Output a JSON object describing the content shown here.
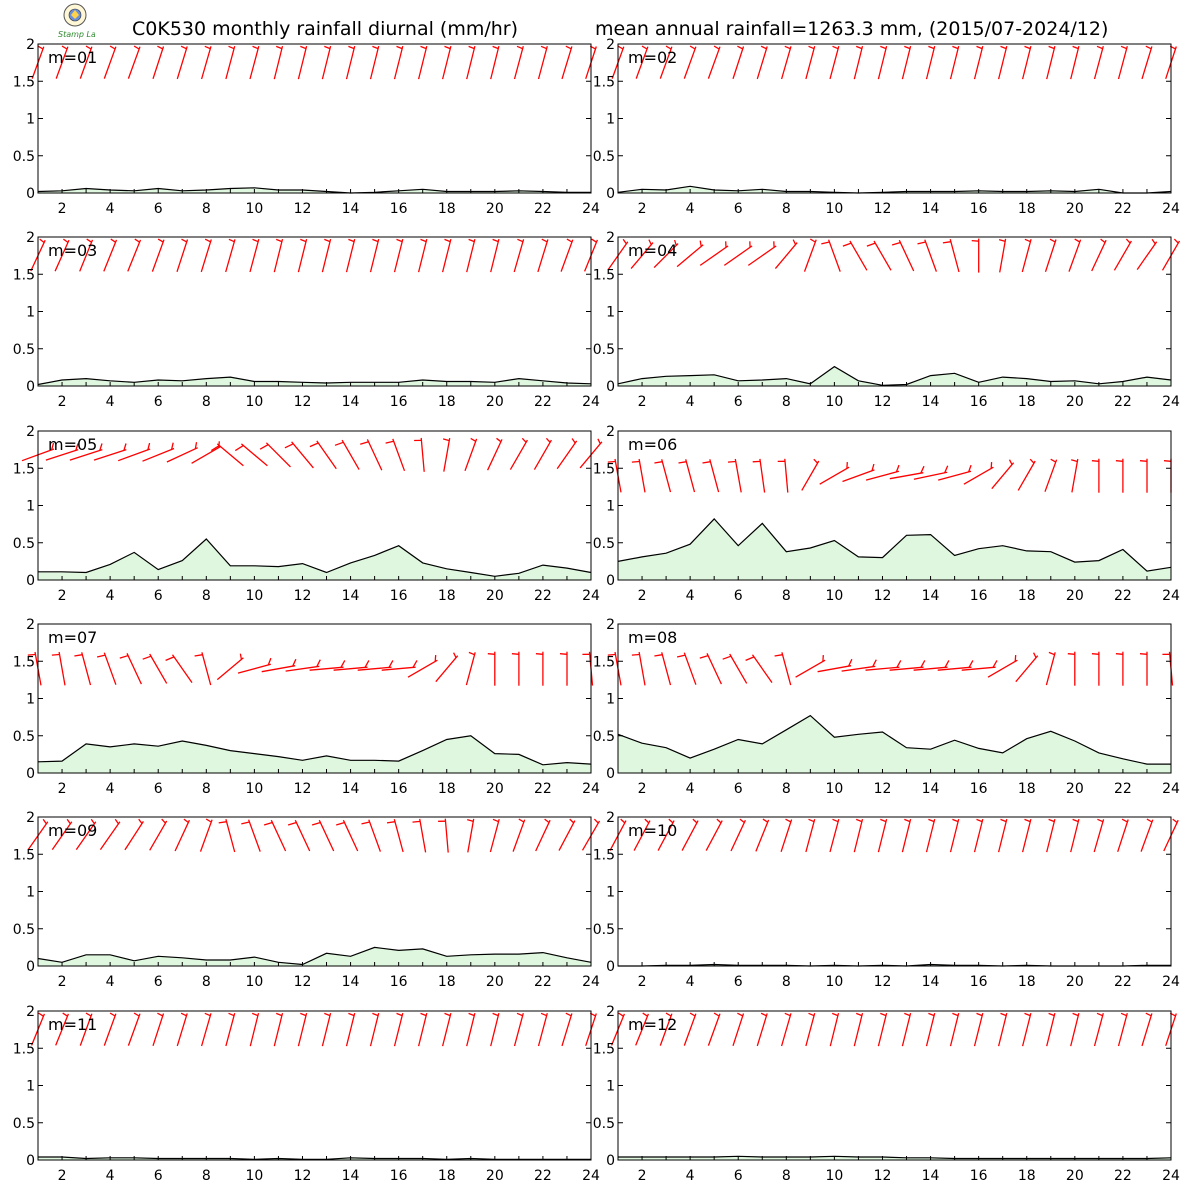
{
  "title_left": "C0K530 monthly rainfall diurnal (mm/hr)",
  "title_right": "mean annual rainfall=1263.3 mm, (2015/07-2024/12)",
  "colors": {
    "fill": "#dff7df",
    "line": "#000000",
    "barb": "#ff0000",
    "frame": "#000000"
  },
  "logo": {
    "icon": "seal-logo-icon",
    "text": "Stamp Lab"
  },
  "chart_data": {
    "type": "area",
    "xlim": [
      1,
      24
    ],
    "ylim": [
      0,
      2
    ],
    "xticks": [
      2,
      4,
      6,
      8,
      10,
      12,
      14,
      16,
      18,
      20,
      22,
      24
    ],
    "yticks": [
      0,
      0.5,
      1,
      1.5,
      2
    ],
    "ytick_labels": [
      "0",
      "0.5",
      "1",
      "1.5",
      "2"
    ],
    "hours": [
      1,
      2,
      3,
      4,
      5,
      6,
      7,
      8,
      9,
      10,
      11,
      12,
      13,
      14,
      15,
      16,
      17,
      18,
      19,
      20,
      21,
      22,
      23,
      24
    ],
    "panels": [
      {
        "label": "m=01",
        "values": [
          0.02,
          0.03,
          0.06,
          0.04,
          0.03,
          0.06,
          0.03,
          0.04,
          0.06,
          0.07,
          0.04,
          0.04,
          0.02,
          0.0,
          0.01,
          0.03,
          0.05,
          0.02,
          0.02,
          0.02,
          0.03,
          0.02,
          0.01,
          0.01
        ],
        "barbs": {
          "y": 1.75,
          "tilt": [
            20,
            20,
            20,
            20,
            20,
            18,
            17,
            16,
            15,
            15,
            14,
            14,
            14,
            14,
            14,
            14,
            14,
            14,
            14,
            14,
            15,
            15,
            17,
            18
          ]
        }
      },
      {
        "label": "m=02",
        "values": [
          0.01,
          0.05,
          0.04,
          0.09,
          0.04,
          0.03,
          0.05,
          0.02,
          0.02,
          0.01,
          0.0,
          0.01,
          0.02,
          0.02,
          0.02,
          0.03,
          0.02,
          0.02,
          0.03,
          0.02,
          0.05,
          0.0,
          0.0,
          0.02
        ],
        "barbs": {
          "y": 1.75,
          "tilt": [
            20,
            20,
            20,
            20,
            20,
            18,
            17,
            16,
            15,
            15,
            14,
            14,
            14,
            14,
            14,
            14,
            14,
            14,
            14,
            14,
            15,
            15,
            17,
            18
          ]
        }
      },
      {
        "label": "m=03",
        "values": [
          0.02,
          0.08,
          0.1,
          0.07,
          0.05,
          0.08,
          0.07,
          0.1,
          0.12,
          0.06,
          0.06,
          0.05,
          0.04,
          0.05,
          0.05,
          0.05,
          0.08,
          0.06,
          0.06,
          0.05,
          0.1,
          0.07,
          0.04,
          0.03
        ],
        "barbs": {
          "y": 1.75,
          "tilt": [
            25,
            24,
            22,
            22,
            22,
            20,
            18,
            17,
            16,
            15,
            14,
            14,
            14,
            14,
            14,
            14,
            14,
            14,
            14,
            14,
            16,
            17,
            20,
            22
          ]
        }
      },
      {
        "label": "m=04",
        "values": [
          0.03,
          0.1,
          0.13,
          0.14,
          0.15,
          0.07,
          0.08,
          0.1,
          0.03,
          0.26,
          0.07,
          0.01,
          0.02,
          0.14,
          0.17,
          0.05,
          0.12,
          0.1,
          0.06,
          0.07,
          0.03,
          0.06,
          0.12,
          0.08
        ],
        "barbs": {
          "y": 1.75,
          "tilt": [
            35,
            40,
            45,
            50,
            55,
            55,
            55,
            40,
            20,
            -20,
            -30,
            -30,
            -25,
            -20,
            -15,
            0,
            10,
            15,
            18,
            20,
            25,
            30,
            35,
            30
          ]
        }
      },
      {
        "label": "m=05",
        "values": [
          0.11,
          0.11,
          0.1,
          0.21,
          0.37,
          0.14,
          0.26,
          0.55,
          0.19,
          0.19,
          0.18,
          0.22,
          0.1,
          0.23,
          0.33,
          0.46,
          0.23,
          0.15,
          0.1,
          0.05,
          0.09,
          0.2,
          0.16,
          0.1
        ],
        "barbs": {
          "y": 1.68,
          "tilt": [
            70,
            72,
            72,
            72,
            70,
            68,
            65,
            60,
            -50,
            -50,
            -45,
            -40,
            -35,
            -30,
            -25,
            -20,
            -5,
            10,
            20,
            25,
            30,
            30,
            35,
            40
          ]
        }
      },
      {
        "label": "m=06",
        "values": [
          0.25,
          0.31,
          0.36,
          0.48,
          0.82,
          0.46,
          0.76,
          0.38,
          0.43,
          0.53,
          0.31,
          0.3,
          0.6,
          0.61,
          0.33,
          0.42,
          0.46,
          0.39,
          0.38,
          0.24,
          0.26,
          0.41,
          0.12,
          0.17
        ],
        "barbs": {
          "y": 1.4,
          "tilt": [
            -10,
            -10,
            -15,
            -15,
            -15,
            -10,
            -8,
            -5,
            30,
            60,
            70,
            75,
            80,
            78,
            75,
            60,
            40,
            30,
            20,
            10,
            0,
            0,
            0,
            0
          ]
        }
      },
      {
        "label": "m=07",
        "values": [
          0.15,
          0.16,
          0.39,
          0.35,
          0.39,
          0.36,
          0.43,
          0.37,
          0.3,
          0.26,
          0.22,
          0.17,
          0.23,
          0.17,
          0.17,
          0.16,
          0.3,
          0.45,
          0.5,
          0.26,
          0.25,
          0.11,
          0.14,
          0.12
        ],
        "barbs": {
          "y": 1.4,
          "tilt": [
            -10,
            -10,
            -15,
            -20,
            -25,
            -30,
            -35,
            -15,
            50,
            75,
            80,
            82,
            85,
            85,
            85,
            85,
            60,
            40,
            15,
            0,
            0,
            0,
            0,
            -5
          ]
        }
      },
      {
        "label": "m=08",
        "values": [
          0.52,
          0.4,
          0.34,
          0.2,
          0.32,
          0.45,
          0.39,
          0.58,
          0.77,
          0.48,
          0.52,
          0.55,
          0.34,
          0.32,
          0.44,
          0.33,
          0.27,
          0.46,
          0.56,
          0.43,
          0.27,
          0.19,
          0.12,
          0.12
        ],
        "barbs": {
          "y": 1.4,
          "tilt": [
            -10,
            -10,
            -15,
            -20,
            -25,
            -30,
            -35,
            -15,
            60,
            80,
            82,
            85,
            85,
            85,
            85,
            85,
            60,
            40,
            15,
            0,
            0,
            0,
            0,
            -5
          ]
        }
      },
      {
        "label": "m=09",
        "values": [
          0.1,
          0.05,
          0.15,
          0.15,
          0.07,
          0.13,
          0.11,
          0.08,
          0.08,
          0.12,
          0.05,
          0.02,
          0.17,
          0.13,
          0.25,
          0.21,
          0.23,
          0.13,
          0.15,
          0.16,
          0.16,
          0.18,
          0.11,
          0.05
        ],
        "barbs": {
          "y": 1.75,
          "tilt": [
            35,
            35,
            35,
            35,
            33,
            30,
            25,
            20,
            -15,
            -20,
            -25,
            -25,
            -25,
            -25,
            -20,
            -15,
            -10,
            -5,
            10,
            15,
            20,
            25,
            28,
            30
          ]
        }
      },
      {
        "label": "m=10",
        "values": [
          0.0,
          0.0,
          0.01,
          0.01,
          0.02,
          0.01,
          0.01,
          0.01,
          0.0,
          0.01,
          0.0,
          0.01,
          0.0,
          0.02,
          0.01,
          0.01,
          0.0,
          0.01,
          0.0,
          0.0,
          0.0,
          0.0,
          0.01,
          0.01
        ],
        "barbs": {
          "y": 1.75,
          "tilt": [
            28,
            28,
            28,
            28,
            28,
            25,
            22,
            18,
            15,
            15,
            14,
            14,
            14,
            14,
            14,
            14,
            14,
            14,
            14,
            14,
            16,
            18,
            20,
            25
          ]
        }
      },
      {
        "label": "m=11",
        "values": [
          0.04,
          0.04,
          0.02,
          0.03,
          0.03,
          0.02,
          0.02,
          0.02,
          0.02,
          0.01,
          0.02,
          0.01,
          0.01,
          0.03,
          0.02,
          0.02,
          0.02,
          0.01,
          0.02,
          0.01,
          0.01,
          0.01,
          0.01,
          0.01
        ],
        "barbs": {
          "y": 1.75,
          "tilt": [
            22,
            22,
            20,
            20,
            20,
            18,
            17,
            16,
            15,
            14,
            14,
            14,
            14,
            14,
            14,
            14,
            14,
            14,
            14,
            14,
            15,
            15,
            17,
            18
          ]
        }
      },
      {
        "label": "m=12",
        "values": [
          0.04,
          0.04,
          0.04,
          0.04,
          0.04,
          0.05,
          0.04,
          0.04,
          0.04,
          0.05,
          0.04,
          0.04,
          0.03,
          0.03,
          0.02,
          0.02,
          0.02,
          0.02,
          0.02,
          0.02,
          0.02,
          0.02,
          0.02,
          0.03
        ],
        "barbs": {
          "y": 1.75,
          "tilt": [
            22,
            22,
            20,
            20,
            20,
            18,
            17,
            16,
            15,
            14,
            14,
            14,
            14,
            14,
            14,
            14,
            14,
            14,
            14,
            14,
            15,
            15,
            17,
            18
          ]
        }
      }
    ]
  }
}
